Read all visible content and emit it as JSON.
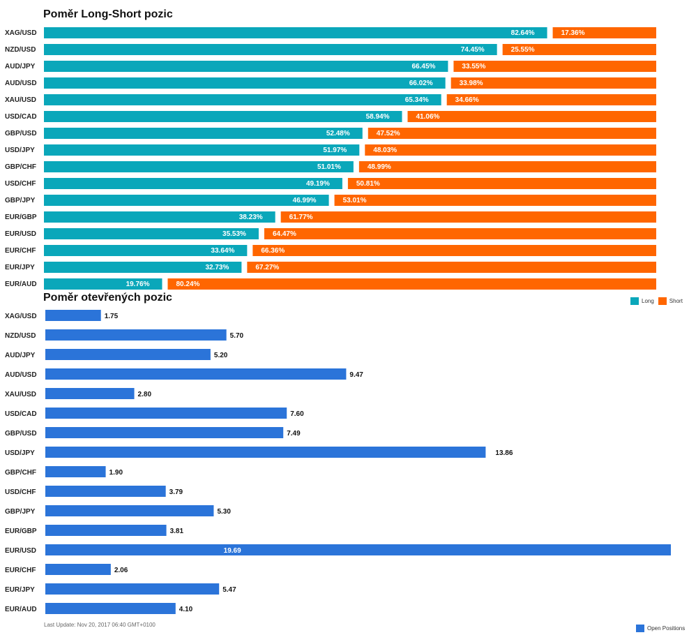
{
  "titles": {
    "long_short": "Poměr Long-Short pozic",
    "open_positions": "Poměr otevřených pozic"
  },
  "legend": {
    "long": "Long",
    "short": "Short",
    "open_positions": "Open Positions"
  },
  "footer": {
    "last_update": "Last Update: Nov 20, 2017 06:40 GMT+0100"
  },
  "colors": {
    "long": "#0aa7ba",
    "short": "#ff6600",
    "open_positions": "#2b74d9"
  },
  "chart_data": [
    {
      "type": "bar",
      "orientation": "horizontal",
      "stacked": true,
      "title": "Poměr Long-Short pozic",
      "categories": [
        "XAG/USD",
        "NZD/USD",
        "AUD/JPY",
        "AUD/USD",
        "XAU/USD",
        "USD/CAD",
        "GBP/USD",
        "USD/JPY",
        "GBP/CHF",
        "USD/CHF",
        "GBP/JPY",
        "EUR/GBP",
        "EUR/USD",
        "EUR/CHF",
        "EUR/JPY",
        "EUR/AUD"
      ],
      "series": [
        {
          "name": "Long",
          "values": [
            82.64,
            74.45,
            66.45,
            66.02,
            65.34,
            58.94,
            52.48,
            51.97,
            51.01,
            49.19,
            46.99,
            38.23,
            35.53,
            33.64,
            32.73,
            19.76
          ]
        },
        {
          "name": "Short",
          "values": [
            17.36,
            25.55,
            33.55,
            33.98,
            34.66,
            41.06,
            47.52,
            48.03,
            48.99,
            50.81,
            53.01,
            61.77,
            64.47,
            66.36,
            67.27,
            80.24
          ]
        }
      ],
      "value_suffix": "%",
      "legend_position": "bottom-right"
    },
    {
      "type": "bar",
      "orientation": "horizontal",
      "title": "Poměr otevřených pozic",
      "categories": [
        "XAG/USD",
        "NZD/USD",
        "AUD/JPY",
        "AUD/USD",
        "XAU/USD",
        "USD/CAD",
        "GBP/USD",
        "USD/JPY",
        "GBP/CHF",
        "USD/CHF",
        "GBP/JPY",
        "EUR/GBP",
        "EUR/USD",
        "EUR/CHF",
        "EUR/JPY",
        "EUR/AUD"
      ],
      "series": [
        {
          "name": "Open Positions",
          "values": [
            1.75,
            5.7,
            5.2,
            9.47,
            2.8,
            7.6,
            7.49,
            13.86,
            1.9,
            3.79,
            5.3,
            3.81,
            19.69,
            2.06,
            5.47,
            4.1
          ]
        }
      ],
      "legend_position": "bottom-right"
    }
  ]
}
